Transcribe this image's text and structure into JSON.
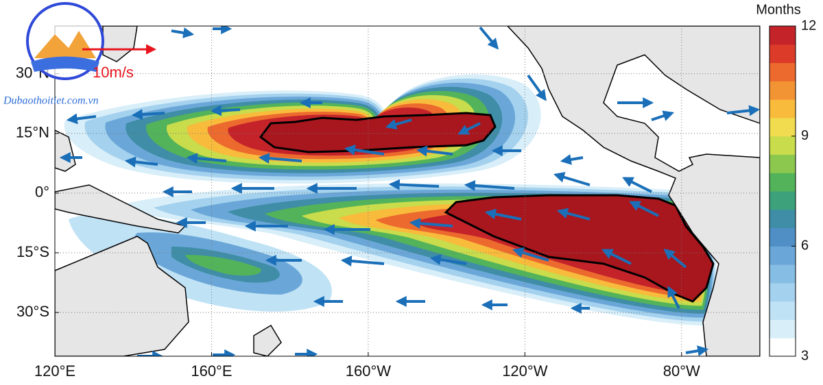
{
  "map": {
    "lon_range": [
      120,
      300
    ],
    "lat_range": [
      -41,
      42
    ],
    "lon_ticks": [
      {
        "value": 120,
        "label": "120°E"
      },
      {
        "value": 160,
        "label": "160°E"
      },
      {
        "value": 200,
        "label": "160°W"
      },
      {
        "value": 240,
        "label": "120°W"
      },
      {
        "value": 280,
        "label": "80°W"
      }
    ],
    "lat_ticks": [
      {
        "value": 30,
        "label": "30°N"
      },
      {
        "value": 15,
        "label": "15°N"
      },
      {
        "value": 0,
        "label": "0°"
      },
      {
        "value": -15,
        "label": "15°S"
      },
      {
        "value": -30,
        "label": "30°S"
      }
    ],
    "reference_vector": "10m/s",
    "grid": true
  },
  "colorbar": {
    "title": "Months",
    "lim": [
      3,
      12
    ],
    "ticks": [
      3,
      6,
      9,
      12
    ],
    "colors": [
      "#ffffff",
      "#d8eef9",
      "#bfe2f5",
      "#a3d1ee",
      "#86bde4",
      "#6aa7d8",
      "#4f8fc6",
      "#3f8da6",
      "#3da27c",
      "#52b35a",
      "#8cc74e",
      "#c8dc4c",
      "#f0dc4e",
      "#f8bb3c",
      "#f39434",
      "#ec6a2e",
      "#dd3b2a",
      "#c4232a"
    ]
  },
  "watermark": "Dubaothoitiet.com.vn"
}
